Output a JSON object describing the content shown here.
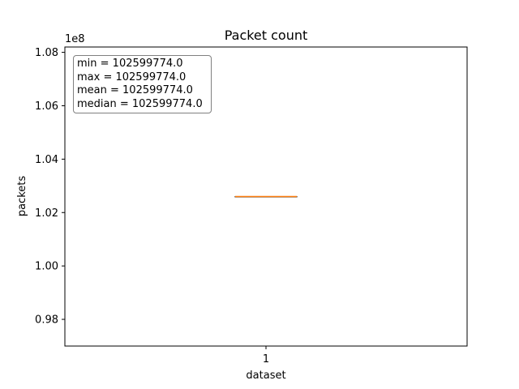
{
  "chart_data": {
    "type": "box",
    "title": "Packet count",
    "xlabel": "dataset",
    "ylabel": "packets",
    "offset_label": "1e8",
    "categories": [
      "1"
    ],
    "ylim": [
      0.97,
      1.082
    ],
    "yticks": [
      0.98,
      1.0,
      1.02,
      1.04,
      1.06,
      1.08
    ],
    "ytick_labels": [
      "0.98",
      "1.00",
      "1.02",
      "1.04",
      "1.06",
      "1.08"
    ],
    "box": {
      "min": 1.02599774,
      "q1": 1.02599774,
      "median": 1.02599774,
      "q3": 1.02599774,
      "max": 1.02599774
    },
    "stats": [
      "min = 102599774.0",
      "max = 102599774.0",
      "mean = 102599774.0",
      "median = 102599774.0"
    ],
    "colors": {
      "box": "#000000",
      "median": "#ff7f0e"
    },
    "grid": false
  }
}
